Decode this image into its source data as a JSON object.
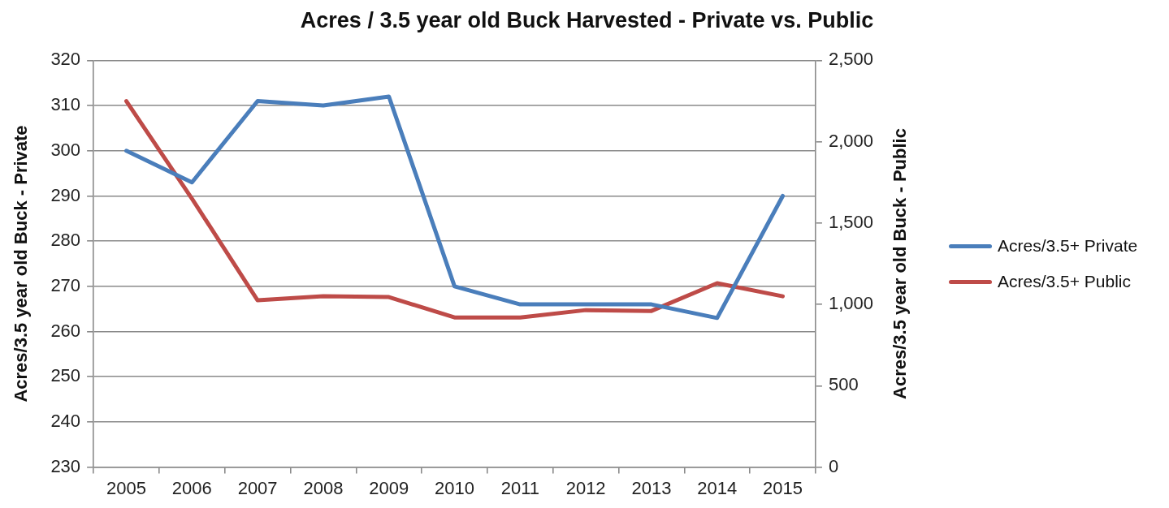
{
  "chart_data": {
    "type": "line",
    "title": "Acres / 3.5 year old Buck Harvested - Private vs. Public",
    "ylabel": "Acres/3.5 year old Buck - Private",
    "y2label": "Acres/3.5 year old Buck - Public",
    "categories": [
      "2005",
      "2006",
      "2007",
      "2008",
      "2009",
      "2010",
      "2011",
      "2012",
      "2013",
      "2014",
      "2015"
    ],
    "series": [
      {
        "name": "Acres/3.5+ Private",
        "color": "#4a7ebb",
        "values": [
          300,
          293,
          311,
          310,
          312,
          270,
          266,
          266,
          266,
          263,
          290
        ]
      },
      {
        "name": "Acres/3.5+ Public",
        "color": "#be4b48",
        "axis": "y2",
        "values": [
          2250,
          1650,
          1025,
          1050,
          1045,
          920,
          920,
          965,
          960,
          1130,
          1050
        ]
      }
    ],
    "ylim": [
      230,
      320
    ],
    "yticks": [
      230,
      240,
      250,
      260,
      270,
      280,
      290,
      300,
      310,
      320
    ],
    "y2lim": [
      0,
      2500
    ],
    "y2ticks": [
      0,
      500,
      {
        "value": 1000,
        "label": "1,000"
      },
      {
        "value": 1500,
        "label": "1,500"
      },
      {
        "value": 2000,
        "label": "2,000"
      },
      {
        "value": 2500,
        "label": "2,500"
      }
    ],
    "grid": "y",
    "legend": "right",
    "line_style": "solid"
  }
}
